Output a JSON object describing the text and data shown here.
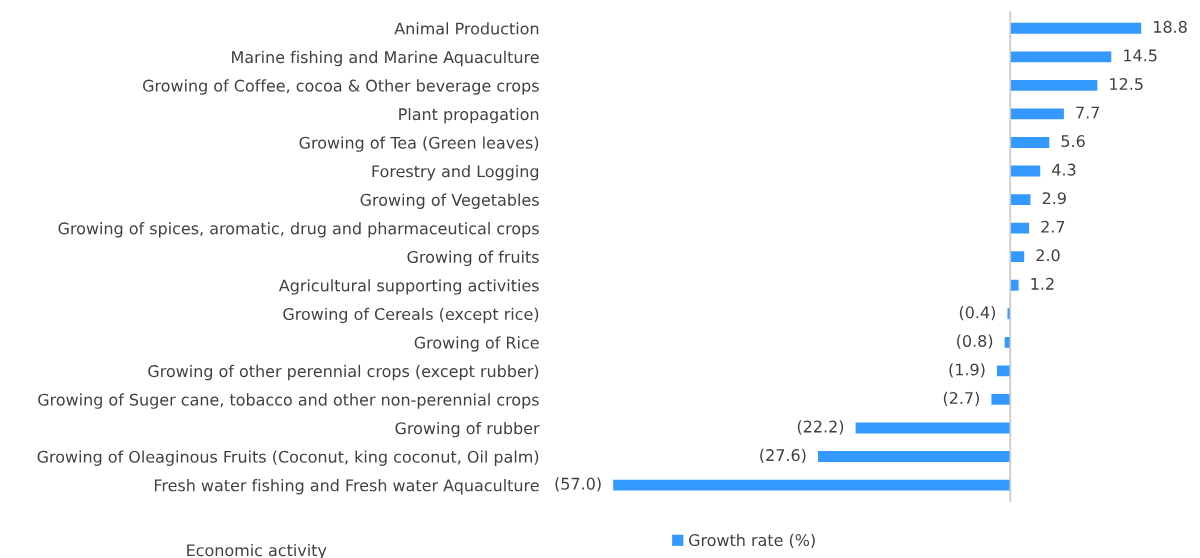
{
  "chart_data": {
    "type": "bar",
    "orientation": "horizontal",
    "xlabel": "Economic activity",
    "categories": [
      "Animal Production",
      "Marine fishing and Marine Aquaculture",
      "Growing of Coffee, cocoa & Other beverage crops",
      "Plant propagation",
      "Growing of Tea (Green leaves)",
      "Forestry and Logging",
      "Growing of Vegetables",
      "Growing of spices, aromatic, drug and pharmaceutical crops",
      "Growing of fruits",
      "Agricultural supporting activities",
      "Growing of Cereals (except rice)",
      "Growing of Rice",
      "Growing of other perennial crops (except rubber)",
      "Growing of Suger cane, tobacco and other non-perennial crops",
      "Growing of rubber",
      "Growing of Oleaginous Fruits (Coconut, king coconut, Oil palm)",
      "Fresh water fishing and Fresh water Aquaculture"
    ],
    "series": [
      {
        "name": "Growth rate (%)",
        "color": "#3399ff",
        "values": [
          18.8,
          14.5,
          12.5,
          7.7,
          5.6,
          4.3,
          2.9,
          2.7,
          2.0,
          1.2,
          -0.4,
          -0.8,
          -1.9,
          -2.7,
          -22.2,
          -27.6,
          -57.0
        ],
        "value_labels": [
          "18.8",
          "14.5",
          "12.5",
          "7.7",
          "5.6",
          "4.3",
          "2.9",
          "2.7",
          "2.0",
          "1.2",
          "(0.4)",
          "(0.8)",
          "(1.9)",
          "(2.7)",
          "(22.2)",
          "(27.6)",
          "(57.0)"
        ]
      }
    ],
    "tick_labels": "y",
    "legend": "bottom",
    "grid": false
  }
}
